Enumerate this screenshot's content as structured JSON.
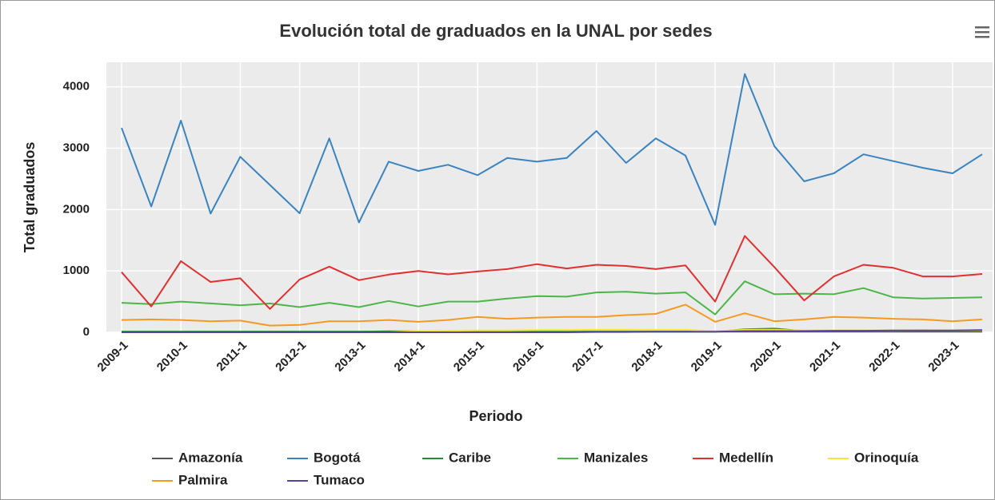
{
  "chart_data": {
    "type": "line",
    "title": "Evolución total de graduados en la UNAL por sedes",
    "x_label": "Periodo",
    "y_label": "Total graduados",
    "categories": [
      "2009-1",
      null,
      "2010-1",
      null,
      "2011-1",
      null,
      "2012-1",
      null,
      "2013-1",
      null,
      "2014-1",
      null,
      "2015-1",
      null,
      "2016-1",
      null,
      "2017-1",
      null,
      "2018-1",
      null,
      "2019-1",
      null,
      "2020-1",
      null,
      "2021-1",
      null,
      "2022-1",
      null,
      "2023-1",
      null
    ],
    "ylim": [
      0,
      4400
    ],
    "yticks": [
      0,
      1000,
      2000,
      3000,
      4000
    ],
    "grid": true,
    "series": [
      {
        "name": "Amazonía",
        "color": "#555555",
        "values": [
          10,
          10,
          10,
          10,
          10,
          10,
          10,
          10,
          10,
          10,
          10,
          10,
          10,
          10,
          10,
          10,
          10,
          10,
          10,
          10,
          10,
          10,
          10,
          10,
          10,
          10,
          10,
          10,
          10,
          10
        ]
      },
      {
        "name": "Bogotá",
        "color": "#3a83c1",
        "values": [
          3330,
          2050,
          3450,
          1935,
          2860,
          2400,
          1940,
          3160,
          1790,
          2780,
          2630,
          2730,
          2560,
          2840,
          2780,
          2840,
          3280,
          2760,
          3160,
          2880,
          1750,
          4210,
          3030,
          2460,
          2590,
          2900,
          2790,
          2680,
          2590,
          2900
        ]
      },
      {
        "name": "Caribe",
        "color": "#2a8a3c",
        "values": [
          10,
          10,
          10,
          10,
          10,
          10,
          10,
          10,
          10,
          15,
          15,
          10,
          10,
          10,
          10,
          10,
          10,
          10,
          10,
          10,
          10,
          50,
          60,
          20,
          20,
          20,
          20,
          30,
          20,
          30
        ]
      },
      {
        "name": "Manizales",
        "color": "#4cb648",
        "values": [
          480,
          460,
          500,
          470,
          440,
          470,
          410,
          480,
          410,
          510,
          420,
          500,
          500,
          550,
          590,
          580,
          650,
          660,
          630,
          650,
          290,
          830,
          620,
          630,
          620,
          720,
          570,
          550,
          560,
          570
        ]
      },
      {
        "name": "Medellín",
        "color": "#e03030",
        "values": [
          980,
          420,
          1160,
          820,
          880,
          380,
          860,
          1070,
          850,
          940,
          1000,
          944,
          990,
          1030,
          1110,
          1040,
          1100,
          1080,
          1030,
          1090,
          500,
          1570,
          1060,
          520,
          910,
          1100,
          1050,
          910,
          910,
          950
        ]
      },
      {
        "name": "Orinoquía",
        "color": "#f2ea2e",
        "values": [
          0,
          0,
          0,
          0,
          0,
          0,
          0,
          0,
          0,
          0,
          20,
          25,
          30,
          30,
          35,
          35,
          40,
          40,
          40,
          40,
          20,
          40,
          40,
          30,
          30,
          30,
          30,
          30,
          30,
          30
        ]
      },
      {
        "name": "Palmira",
        "color": "#f59a20",
        "values": [
          200,
          210,
          200,
          180,
          190,
          110,
          120,
          180,
          180,
          200,
          170,
          200,
          250,
          220,
          240,
          250,
          250,
          280,
          300,
          450,
          170,
          310,
          180,
          210,
          250,
          240,
          220,
          210,
          180,
          210
        ]
      },
      {
        "name": "Tumaco",
        "color": "#5b3fa0",
        "values": [
          0,
          0,
          0,
          0,
          0,
          0,
          0,
          0,
          0,
          0,
          0,
          0,
          0,
          0,
          0,
          0,
          5,
          5,
          10,
          10,
          10,
          20,
          20,
          20,
          25,
          25,
          30,
          30,
          30,
          35
        ]
      }
    ]
  }
}
